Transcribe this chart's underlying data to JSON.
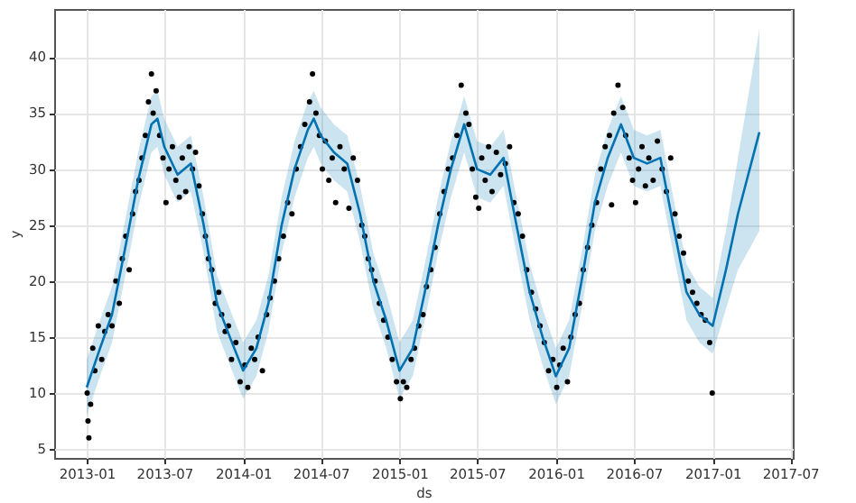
{
  "chart_data": {
    "type": "line",
    "xlabel": "ds",
    "ylabel": "y",
    "xlim": [
      "2012-10-17",
      "2017-07-07"
    ],
    "ylim": [
      4.2,
      44.3
    ],
    "xticks": [
      "2013-01",
      "2013-07",
      "2014-01",
      "2014-07",
      "2015-01",
      "2015-07",
      "2016-01",
      "2016-07",
      "2017-01",
      "2017-07"
    ],
    "yticks": [
      5,
      10,
      15,
      20,
      25,
      30,
      35,
      40
    ],
    "grid": true,
    "series": [
      {
        "type": "scatter",
        "color": "#000000",
        "marker": "circle",
        "x": [
          "2013-01-02",
          "2013-01-04",
          "2013-01-06",
          "2013-01-10",
          "2013-01-15",
          "2013-01-20",
          "2013-01-28",
          "2013-02-05",
          "2013-02-12",
          "2013-02-20",
          "2013-03-01",
          "2013-03-10",
          "2013-03-18",
          "2013-03-25",
          "2013-04-02",
          "2013-04-10",
          "2013-04-18",
          "2013-04-25",
          "2013-05-03",
          "2013-05-10",
          "2013-05-18",
          "2013-05-25",
          "2013-06-01",
          "2013-06-05",
          "2013-06-12",
          "2013-06-20",
          "2013-06-28",
          "2013-07-05",
          "2013-07-12",
          "2013-07-20",
          "2013-07-28",
          "2013-08-05",
          "2013-08-12",
          "2013-08-20",
          "2013-08-28",
          "2013-09-05",
          "2013-09-12",
          "2013-09-20",
          "2013-09-28",
          "2013-10-05",
          "2013-10-12",
          "2013-10-20",
          "2013-10-28",
          "2013-11-05",
          "2013-11-12",
          "2013-11-20",
          "2013-11-28",
          "2013-12-05",
          "2013-12-15",
          "2013-12-25",
          "2014-01-05",
          "2014-01-12",
          "2014-01-20",
          "2014-01-28",
          "2014-02-05",
          "2014-02-15",
          "2014-02-25",
          "2014-03-05",
          "2014-03-15",
          "2014-03-25",
          "2014-04-05",
          "2014-04-15",
          "2014-04-25",
          "2014-05-05",
          "2014-05-15",
          "2014-05-25",
          "2014-06-05",
          "2014-06-12",
          "2014-06-20",
          "2014-06-28",
          "2014-07-05",
          "2014-07-12",
          "2014-07-20",
          "2014-07-28",
          "2014-08-05",
          "2014-08-15",
          "2014-08-25",
          "2014-09-05",
          "2014-09-15",
          "2014-09-25",
          "2014-10-05",
          "2014-10-12",
          "2014-10-20",
          "2014-10-28",
          "2014-11-05",
          "2014-11-15",
          "2014-11-25",
          "2014-12-05",
          "2014-12-15",
          "2014-12-25",
          "2015-01-03",
          "2015-01-10",
          "2015-01-18",
          "2015-01-28",
          "2015-02-05",
          "2015-02-15",
          "2015-02-25",
          "2015-03-05",
          "2015-03-15",
          "2015-03-25",
          "2015-04-05",
          "2015-04-15",
          "2015-04-25",
          "2015-05-05",
          "2015-05-15",
          "2015-05-25",
          "2015-06-05",
          "2015-06-12",
          "2015-06-20",
          "2015-06-28",
          "2015-07-05",
          "2015-07-12",
          "2015-07-20",
          "2015-07-28",
          "2015-08-05",
          "2015-08-15",
          "2015-08-25",
          "2015-09-05",
          "2015-09-15",
          "2015-09-25",
          "2015-10-05",
          "2015-10-15",
          "2015-10-25",
          "2015-11-05",
          "2015-11-15",
          "2015-11-25",
          "2015-12-05",
          "2015-12-15",
          "2015-12-25",
          "2016-01-03",
          "2016-01-10",
          "2016-01-18",
          "2016-01-28",
          "2016-02-05",
          "2016-02-15",
          "2016-02-25",
          "2016-03-05",
          "2016-03-15",
          "2016-03-25",
          "2016-04-05",
          "2016-04-15",
          "2016-04-25",
          "2016-05-05",
          "2016-05-10",
          "2016-05-15",
          "2016-05-25",
          "2016-06-05",
          "2016-06-12",
          "2016-06-20",
          "2016-06-28",
          "2016-07-05",
          "2016-07-12",
          "2016-07-20",
          "2016-07-28",
          "2016-08-05",
          "2016-08-15",
          "2016-08-25",
          "2016-09-05",
          "2016-09-15",
          "2016-09-25",
          "2016-10-05",
          "2016-10-15",
          "2016-10-25",
          "2016-11-05",
          "2016-11-15",
          "2016-11-25",
          "2016-12-05",
          "2016-12-15",
          "2016-12-25",
          "2016-12-31"
        ],
        "values": [
          10,
          7.5,
          6,
          9,
          14,
          12,
          16,
          13,
          15.5,
          17,
          16,
          20,
          18,
          22,
          24,
          21,
          26,
          28,
          29,
          31,
          33,
          36,
          38.5,
          35,
          37,
          33,
          31,
          27,
          30,
          32,
          29,
          27.5,
          31,
          28,
          32,
          30,
          31.5,
          28.5,
          26,
          24,
          22,
          21,
          18,
          19,
          17,
          15.5,
          16,
          13,
          14.5,
          11,
          12.5,
          10.5,
          14,
          13,
          15,
          12,
          17,
          18.5,
          20,
          22,
          24,
          27,
          26,
          30,
          32,
          34,
          36,
          38.5,
          35,
          33,
          30,
          32.5,
          29,
          31,
          27,
          32,
          30,
          26.5,
          31,
          29,
          25,
          24,
          22,
          21,
          20,
          18,
          16.5,
          15,
          13,
          11,
          9.5,
          11,
          10.5,
          13,
          14,
          16,
          17,
          19.5,
          21,
          23,
          26,
          28,
          30,
          31,
          33,
          37.5,
          35,
          34,
          30,
          27.5,
          26.5,
          31,
          29,
          32,
          28,
          31.5,
          29.5,
          30.5,
          32,
          27,
          26,
          24,
          21,
          19,
          17.5,
          16,
          14.5,
          12,
          13,
          10.5,
          12.5,
          14,
          11,
          15,
          17,
          18,
          21,
          23,
          25,
          27,
          30,
          32,
          33,
          26.8,
          35,
          37.5,
          35.5,
          33,
          31,
          29,
          27,
          30,
          32,
          28.5,
          31,
          29,
          32.5,
          30,
          28,
          31,
          26,
          24,
          22.5,
          20,
          19,
          18,
          17,
          16.5,
          14.5,
          10
        ]
      },
      {
        "color": "#0072b2",
        "x": [
          "2013-01-01",
          "2013-02-01",
          "2013-03-01",
          "2013-04-01",
          "2013-05-01",
          "2013-06-01",
          "2013-06-15",
          "2013-07-01",
          "2013-08-01",
          "2013-09-01",
          "2013-10-01",
          "2013-11-01",
          "2013-12-01",
          "2014-01-01",
          "2014-02-01",
          "2014-03-01",
          "2014-04-01",
          "2014-05-01",
          "2014-06-01",
          "2014-06-15",
          "2014-07-01",
          "2014-08-01",
          "2014-09-01",
          "2014-10-01",
          "2014-11-01",
          "2014-12-01",
          "2015-01-01",
          "2015-02-01",
          "2015-03-01",
          "2015-04-01",
          "2015-05-01",
          "2015-06-01",
          "2015-07-01",
          "2015-08-01",
          "2015-09-01",
          "2015-10-01",
          "2015-11-01",
          "2015-12-01",
          "2016-01-01",
          "2016-02-01",
          "2016-03-01",
          "2016-04-01",
          "2016-05-01",
          "2016-06-01",
          "2016-07-01",
          "2016-08-01",
          "2016-09-01",
          "2016-10-01",
          "2016-11-01",
          "2016-12-01",
          "2017-01-01",
          "2017-02-01",
          "2017-03-01",
          "2017-04-20"
        ],
        "values": [
          10.5,
          14,
          17,
          23,
          29,
          34,
          34.5,
          32,
          29.5,
          30.5,
          25,
          18,
          15,
          12,
          14,
          18,
          25,
          30,
          33.5,
          34.5,
          33,
          31.5,
          30.5,
          26,
          20,
          16.5,
          12,
          14,
          19,
          25,
          30,
          34,
          30,
          29.5,
          31,
          25,
          19,
          15,
          11.5,
          14,
          20,
          27,
          31,
          34,
          31,
          30.5,
          31,
          25,
          19,
          17,
          16,
          21,
          26,
          33.3
        ],
        "lower": [
          8,
          11.5,
          14.5,
          20.5,
          26.5,
          31.5,
          32,
          29.5,
          27,
          28,
          22.5,
          15.5,
          12.5,
          9.5,
          11.5,
          15.5,
          22.5,
          27.5,
          31,
          32,
          30.5,
          29,
          28,
          23.5,
          17.5,
          14,
          9.5,
          11.5,
          16.5,
          22.5,
          27.5,
          31.5,
          27.5,
          27,
          28.5,
          22.5,
          16.5,
          12.5,
          9,
          11.5,
          17.5,
          24.5,
          28.5,
          31.5,
          28.5,
          28,
          28.5,
          22.5,
          16.5,
          14.5,
          13.5,
          17.5,
          21,
          24.5
        ],
        "upper": [
          13,
          16.5,
          19.5,
          25.5,
          31.5,
          36.5,
          37,
          34.5,
          32,
          33,
          27.5,
          20.5,
          17.5,
          14.5,
          16.5,
          20.5,
          27.5,
          32.5,
          36,
          37,
          35.5,
          34,
          33,
          28.5,
          22.5,
          19,
          14.5,
          16.5,
          21.5,
          27.5,
          32.5,
          36.5,
          32.5,
          32,
          33.5,
          27.5,
          21.5,
          17.5,
          14,
          16.5,
          22.5,
          29.5,
          33.5,
          36.5,
          33.5,
          33,
          33.5,
          27.5,
          21.5,
          19.5,
          18.5,
          24.5,
          31,
          42.5
        ]
      }
    ]
  }
}
